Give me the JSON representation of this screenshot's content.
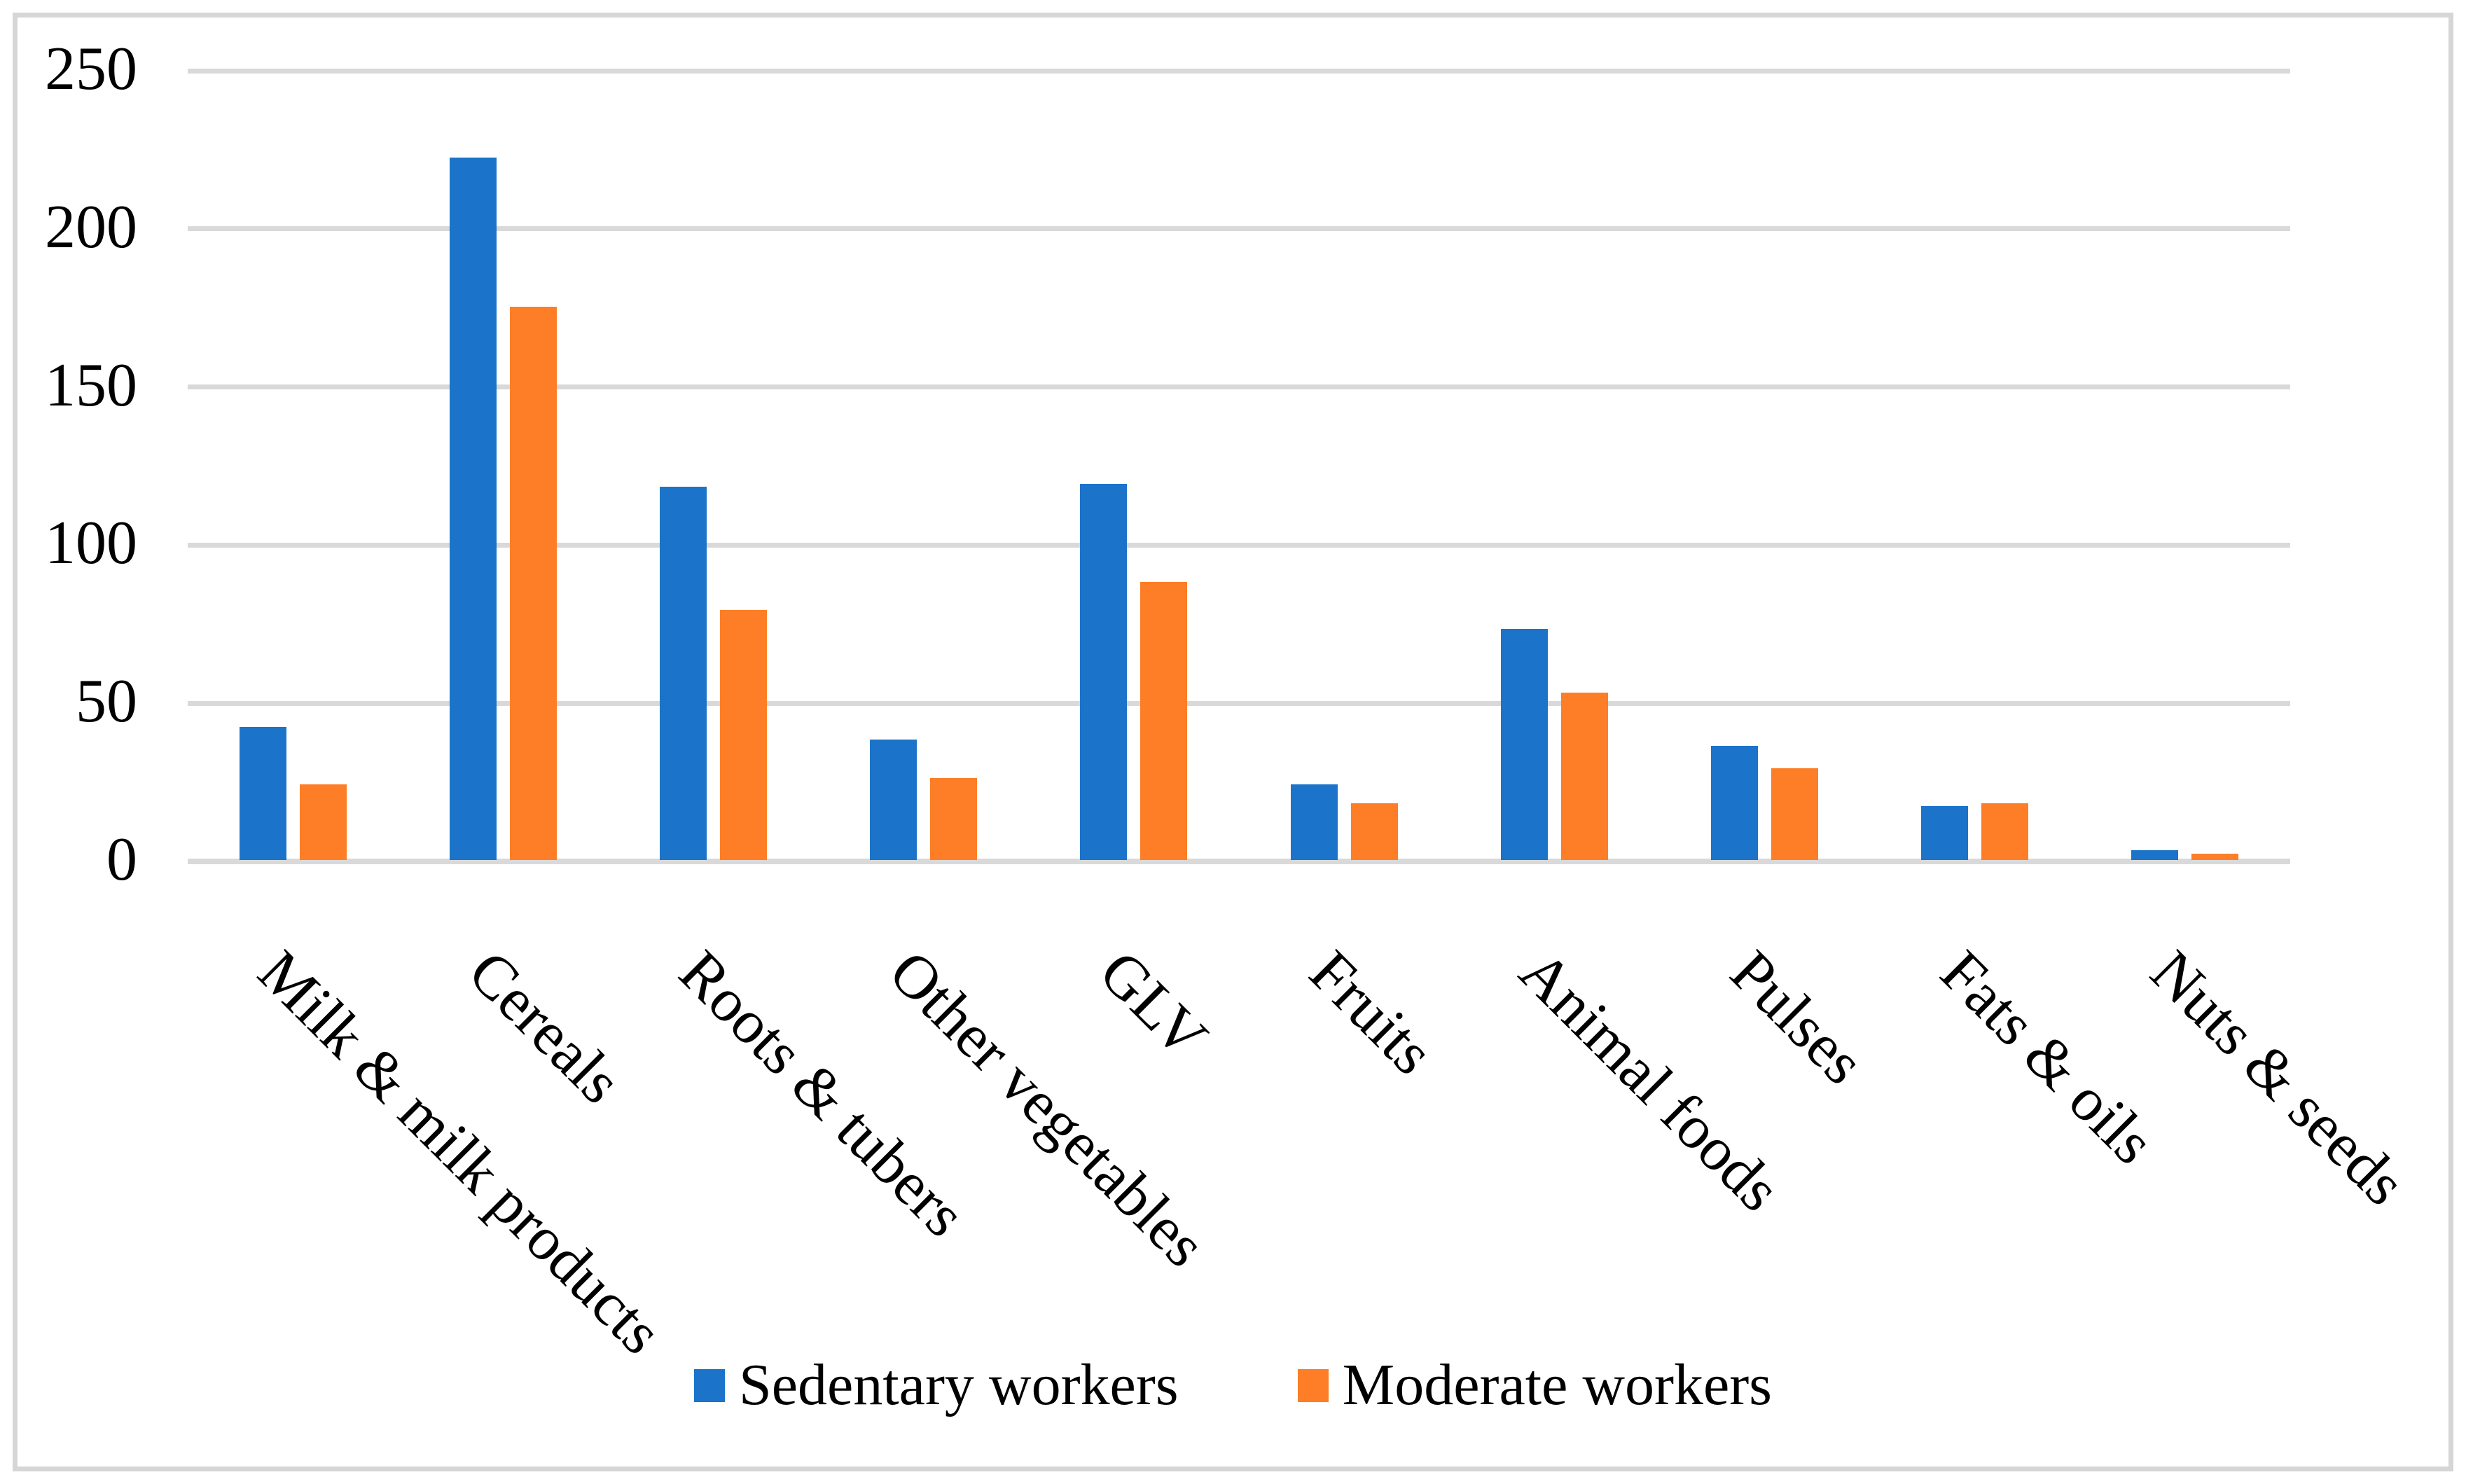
{
  "chart_data": {
    "type": "bar",
    "title": "",
    "xlabel": "",
    "ylabel": "",
    "categories": [
      "Milk & milk products",
      "Cereals",
      "Roots & tubers",
      "Other vegetables",
      "GLV",
      "Fruits",
      "Animal foods",
      "Pulses",
      "Fats & oils",
      "Nuts & seeds"
    ],
    "series": [
      {
        "name": "Sedentary workers",
        "color": "#1B74C9",
        "values": [
          42,
          222,
          118,
          38,
          119,
          24,
          73,
          36,
          17,
          3
        ]
      },
      {
        "name": "Moderate workers",
        "color": "#FD7E26",
        "values": [
          24,
          175,
          79,
          26,
          88,
          18,
          53,
          29,
          18,
          2
        ]
      }
    ],
    "ylim": [
      0,
      250
    ],
    "yticks": [
      0,
      50,
      100,
      150,
      200,
      250
    ],
    "grid": true,
    "legend_position": "bottom"
  },
  "colors": {
    "background": "#FFFFFF",
    "gridline": "#D9D9D9",
    "axis_line": "#D9D9D9",
    "frame_border": "#D6D6D6",
    "text": "#000000",
    "series_blue": "#1B74C9",
    "series_orange": "#FD7E26"
  }
}
